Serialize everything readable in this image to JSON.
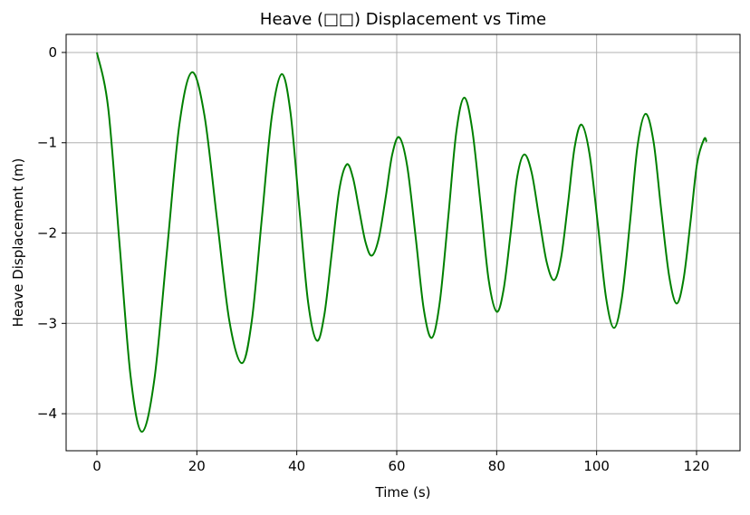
{
  "chart_data": {
    "type": "line",
    "title": "Heave (□□) Displacement vs Time",
    "x_label": "Time (s)",
    "y_label": "Heave Displacement (m)",
    "x": [
      0,
      2.25,
      4.5,
      6.75,
      9,
      11.5,
      14,
      16.5,
      19,
      21.5,
      24,
      26.5,
      29,
      31,
      33,
      35,
      37,
      38.75,
      40.5,
      42.25,
      44,
      45.5,
      47,
      48.5,
      50,
      51.25,
      52.5,
      53.75,
      55,
      56.4,
      57.8,
      59.1,
      60.5,
      62.1,
      63.8,
      65.4,
      67,
      68.6,
      70.3,
      71.9,
      73.5,
      75.1,
      76.8,
      78.4,
      80,
      81.4,
      82.8,
      84.1,
      85.5,
      87,
      88.5,
      90,
      91.5,
      92.9,
      94.3,
      95.6,
      97,
      98.6,
      100.3,
      101.9,
      103.5,
      105.1,
      106.7,
      108.2,
      109.8,
      111.4,
      112.9,
      114.5,
      116,
      117.4,
      118.8,
      120.1,
      121.5,
      122
    ],
    "series": [
      {
        "name": "Heave",
        "color": "#008000",
        "values": [
          0,
          -0.61,
          -2.1,
          -3.59,
          -4.2,
          -3.62,
          -2.21,
          -0.8,
          -0.22,
          -0.69,
          -1.83,
          -2.97,
          -3.44,
          -2.97,
          -1.84,
          -0.71,
          -0.24,
          -0.67,
          -1.72,
          -2.76,
          -3.19,
          -2.91,
          -2.22,
          -1.52,
          -1.24,
          -1.39,
          -1.75,
          -2.1,
          -2.25,
          -2.06,
          -1.6,
          -1.13,
          -0.94,
          -1.26,
          -2.05,
          -2.84,
          -3.16,
          -2.77,
          -1.83,
          -0.89,
          -0.5,
          -0.85,
          -1.69,
          -2.52,
          -2.87,
          -2.62,
          -2.0,
          -1.38,
          -1.13,
          -1.33,
          -1.83,
          -2.32,
          -2.52,
          -2.27,
          -1.66,
          -1.05,
          -0.8,
          -1.13,
          -1.93,
          -2.72,
          -3.05,
          -2.7,
          -1.87,
          -1.03,
          -0.68,
          -0.99,
          -1.73,
          -2.47,
          -2.78,
          -2.51,
          -1.87,
          -1.23,
          -0.96,
          -0.99
        ]
      }
    ],
    "xlim": [
      -6.16,
      128.7
    ],
    "ylim": [
      -4.41,
      0.2
    ],
    "xticks": [
      0,
      20,
      40,
      60,
      80,
      100,
      120
    ],
    "yticks": [
      {
        "value": 0,
        "label": "0"
      },
      {
        "value": -1,
        "label": "−1"
      },
      {
        "value": -2,
        "label": "−2"
      },
      {
        "value": -3,
        "label": "−3"
      },
      {
        "value": -4,
        "label": "−4"
      }
    ],
    "grid": true
  }
}
